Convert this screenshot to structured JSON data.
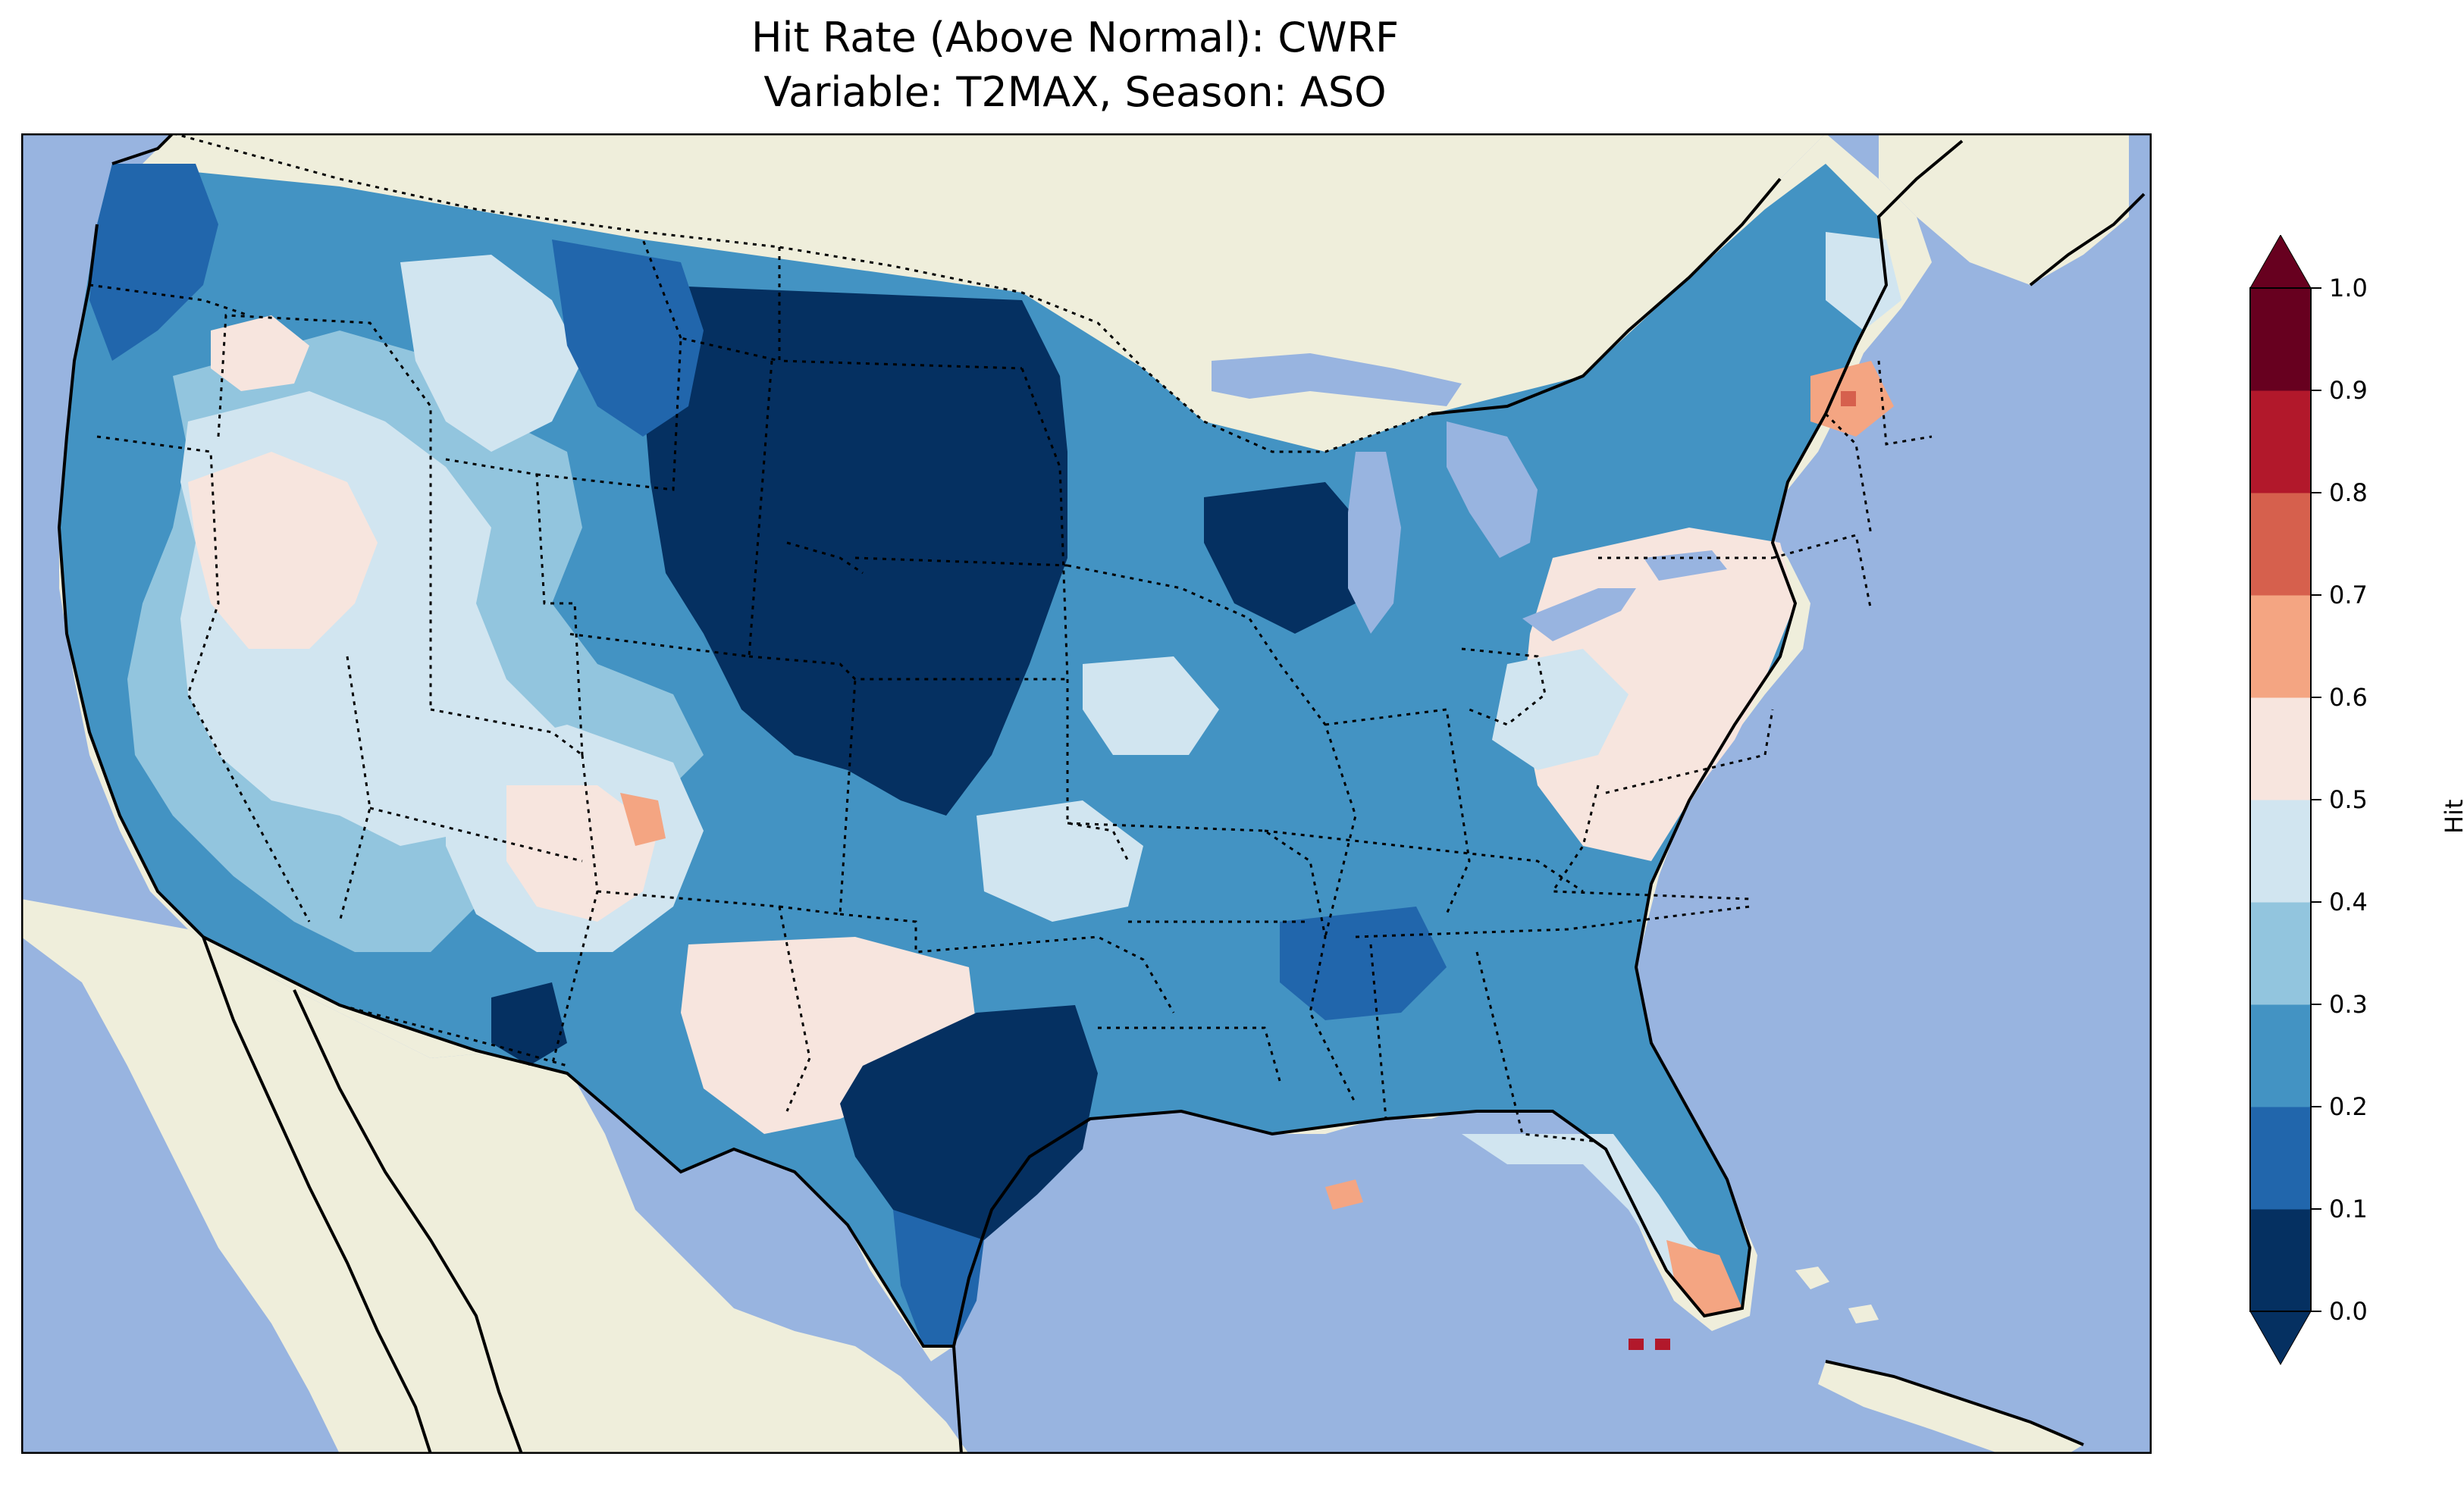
{
  "title": {
    "line1": "Hit Rate (Above Normal): CWRF",
    "line2": "Variable: T2MAX, Season: ASO"
  },
  "colorbar": {
    "label": "Hit Rate",
    "ticks": [
      "0.0",
      "0.1",
      "0.2",
      "0.3",
      "0.4",
      "0.5",
      "0.6",
      "0.7",
      "0.8",
      "0.9",
      "1.0"
    ],
    "colors": [
      "#053061",
      "#2166ac",
      "#4393c3",
      "#92c5de",
      "#d1e5f0",
      "#f7e5de",
      "#f4a582",
      "#d6604d",
      "#b2182b",
      "#67001f"
    ],
    "extend": "both"
  },
  "map_colors": {
    "ocean": "#98b4e0",
    "land": "#efeedb",
    "lakes": "#98b4e0"
  },
  "map_data": {
    "region": "Contiguous United States",
    "metric": "Hit Rate (Above Normal)",
    "model": "CWRF",
    "variable": "T2MAX",
    "season": "ASO",
    "regional_values": [
      {
        "region": "Pacific Northwest coast",
        "value": 0.15
      },
      {
        "region": "Northern Rockies / Montana east",
        "value": 0.1
      },
      {
        "region": "Northern Great Plains (Dakotas, Nebraska)",
        "value": 0.05
      },
      {
        "region": "Great Basin",
        "value": 0.4
      },
      {
        "region": "Four Corners / Colorado plateau",
        "value": 0.55
      },
      {
        "region": "Southern New Mexico",
        "value": 0.05
      },
      {
        "region": "Central Texas",
        "value": 0.05
      },
      {
        "region": "Midwest",
        "value": 0.25
      },
      {
        "region": "Southeast",
        "value": 0.25
      },
      {
        "region": "Mid-Atlantic",
        "value": 0.5
      },
      {
        "region": "New England",
        "value": 0.55
      },
      {
        "region": "Vermont / New Hampshire",
        "value": 0.75
      },
      {
        "region": "South Florida",
        "value": 0.65
      }
    ]
  }
}
